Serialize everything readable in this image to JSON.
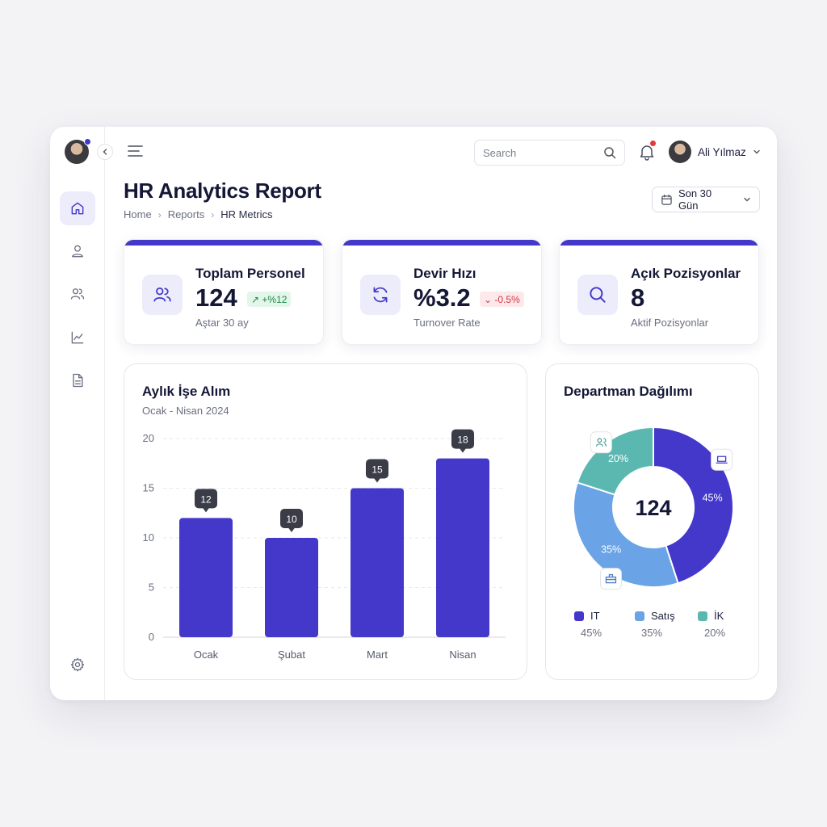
{
  "user": {
    "name": "Ali Yılmaz"
  },
  "search": {
    "placeholder": "Search"
  },
  "header": {
    "title": "HR Analytics Report",
    "breadcrumb": [
      "Home",
      "Reports",
      "HR Metrics"
    ],
    "date_range": "Son 30 Gün"
  },
  "kpis": [
    {
      "title": "Toplam Personel",
      "value": "124",
      "badge": "↗ +%12",
      "badge_trend": "up",
      "sub": "Aştar 30 ay",
      "icon": "users-icon"
    },
    {
      "title": "Devir Hızı",
      "value": "%3.2",
      "badge": "⌄ -0.5%",
      "badge_trend": "down",
      "sub": "Turnover Rate",
      "icon": "refresh-icon"
    },
    {
      "title": "Açık Pozisyonlar",
      "value": "8",
      "sub": "Aktif Pozisyonlar",
      "icon": "search-icon"
    }
  ],
  "colors": {
    "accent": "#4338ca",
    "it": "#4338ca",
    "sales": "#6aa3e6",
    "hr": "#5bb8b0"
  },
  "chart_data": [
    {
      "type": "bar",
      "title": "Aylık İşe Alım",
      "subtitle": "Ocak - Nisan 2024",
      "categories": [
        "Ocak",
        "Şubat",
        "Mart",
        "Nisan"
      ],
      "values": [
        12,
        10,
        15,
        18
      ],
      "ylim": [
        0,
        20
      ],
      "yticks": [
        0,
        5,
        10,
        15,
        20
      ],
      "grid": true
    },
    {
      "type": "pie",
      "title": "Departman Dağılımı",
      "center_label": "124",
      "slices": [
        {
          "label": "IT",
          "value": 45,
          "pct": "45%",
          "color": "#4338ca",
          "icon": "laptop-icon"
        },
        {
          "label": "Satış",
          "value": 35,
          "pct": "35%",
          "color": "#6aa3e6",
          "icon": "briefcase-icon"
        },
        {
          "label": "İK",
          "value": 20,
          "pct": "20%",
          "color": "#5bb8b0",
          "icon": "people-icon"
        }
      ]
    }
  ]
}
